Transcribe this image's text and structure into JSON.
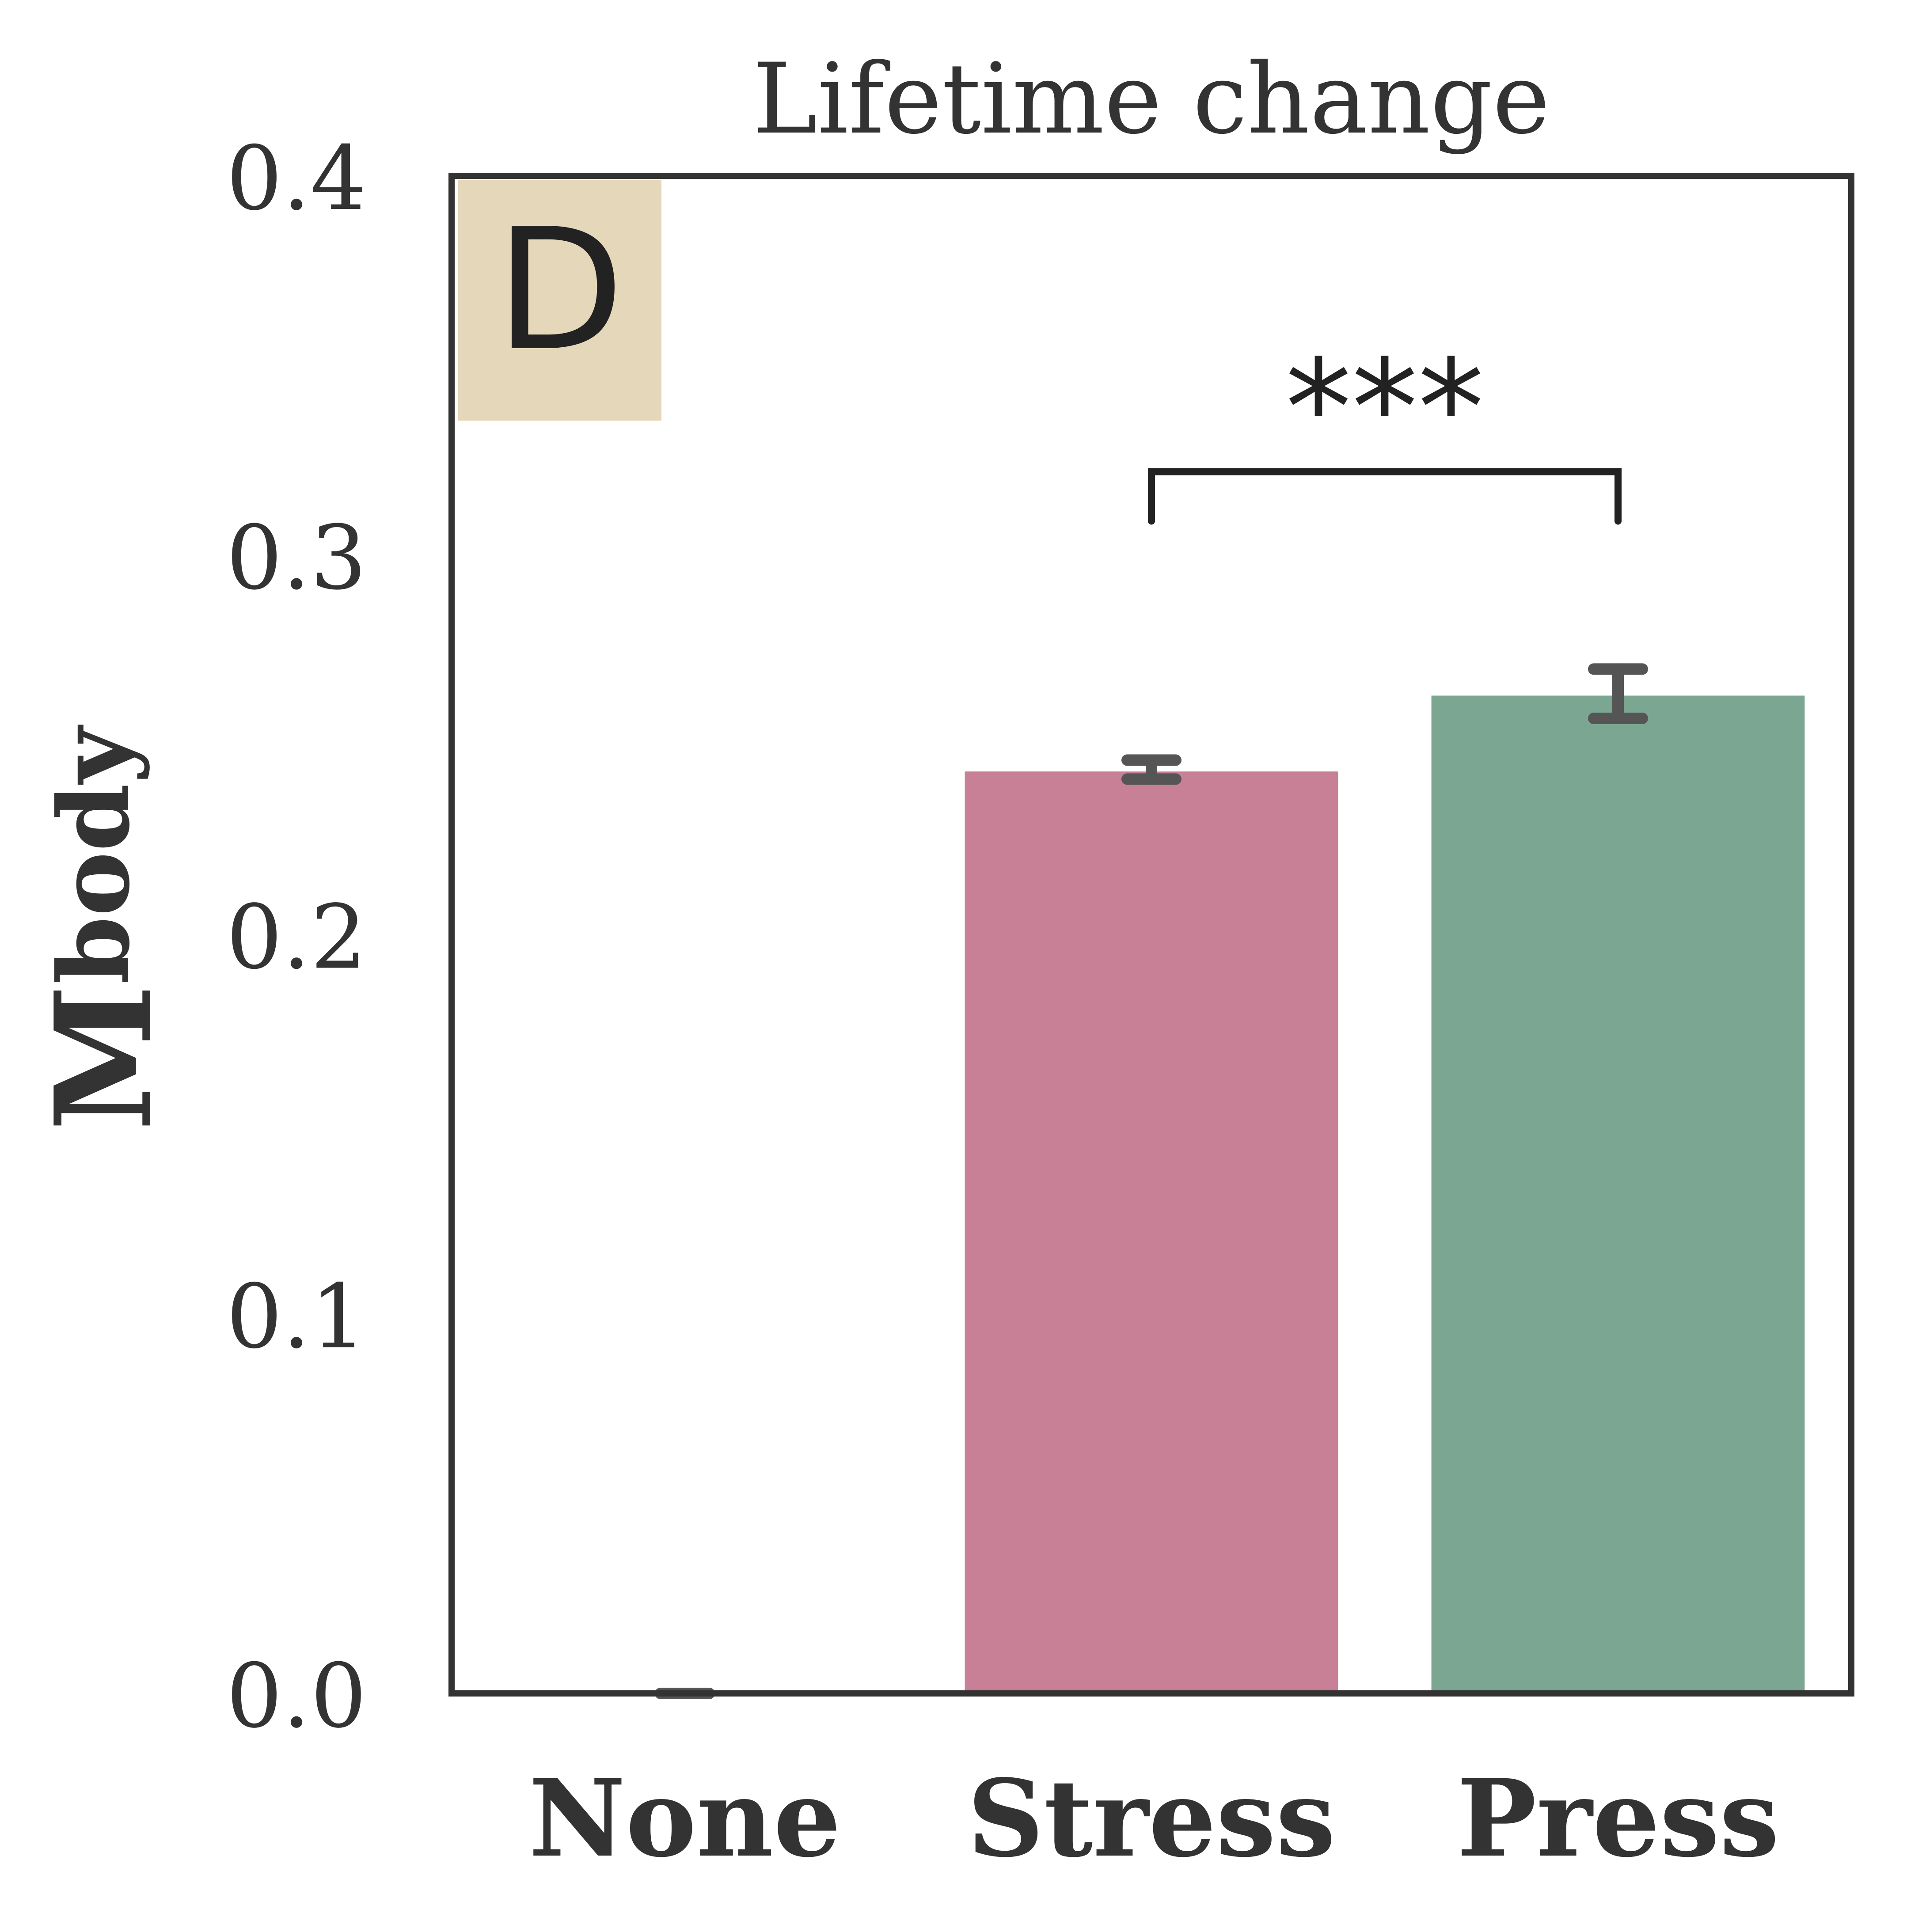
{
  "chart_data": {
    "type": "bar",
    "title": "Lifetime change",
    "panel_label": "D",
    "ylabel_main": "M",
    "ylabel_sub": "body",
    "xlabel": "",
    "categories": [
      "None",
      "Stress",
      "Press"
    ],
    "values": [
      0.0,
      0.243,
      0.263
    ],
    "errors": [
      {
        "lower": 0.0,
        "upper": 0.0
      },
      {
        "lower": 0.241,
        "upper": 0.246
      },
      {
        "lower": 0.257,
        "upper": 0.27
      }
    ],
    "colors": [
      "#ffffff",
      "#c88096",
      "#7ba792"
    ],
    "ylim": [
      0.0,
      0.4
    ],
    "yticks": [
      0.0,
      0.1,
      0.2,
      0.3,
      0.4
    ],
    "ytick_labels": [
      "0.0",
      "0.1",
      "0.2",
      "0.3",
      "0.4"
    ],
    "significance": {
      "from": "Stress",
      "to": "Press",
      "label": "***",
      "bracket_y": 0.322,
      "leg_bottom": 0.309
    },
    "grid": false,
    "styles": {
      "axis_color": "#333333",
      "text_color": "#333333",
      "error_color": "#555555",
      "label_box_color": "#e5d7b9",
      "bracket_color": "#222222"
    }
  }
}
